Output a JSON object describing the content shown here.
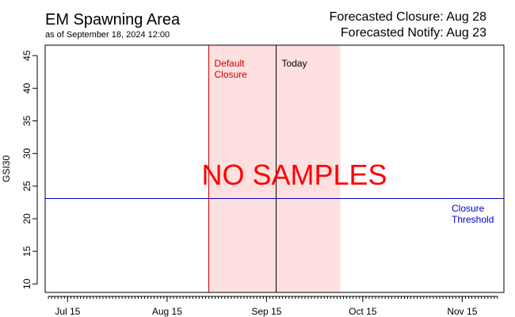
{
  "header": {
    "title": "EM Spawning Area",
    "subtitle": "as of September 18, 2024 12:00",
    "forecast_closure": "Forecasted Closure: Aug 28",
    "forecast_notify": "Forecasted Notify: Aug 23"
  },
  "chart_data": {
    "type": "line",
    "title": "EM Spawning Area",
    "ylabel": "GSI30",
    "xlabel": "",
    "xlim": [
      "2024-07-08",
      "2024-11-28"
    ],
    "ylim": [
      8.7,
      46.6
    ],
    "yticks": [
      10,
      15,
      20,
      25,
      30,
      35,
      40,
      45
    ],
    "xticks": [
      {
        "label": "Jul 15",
        "date": "2024-07-15"
      },
      {
        "label": "Aug 15",
        "date": "2024-08-15"
      },
      {
        "label": "Sep 15",
        "date": "2024-09-15"
      },
      {
        "label": "Oct 15",
        "date": "2024-10-15"
      },
      {
        "label": "Nov 15",
        "date": "2024-11-15"
      }
    ],
    "series": [],
    "shaded_region": {
      "start": "2024-08-28",
      "end": "2024-10-08",
      "color": "#ffe0e0"
    },
    "vlines": [
      {
        "date": "2024-08-28",
        "label": "Default Closure",
        "color": "#cc0000"
      },
      {
        "date": "2024-09-18",
        "label": "Today",
        "color": "#000000"
      }
    ],
    "hline": {
      "value": 23.1,
      "label": "Closure Threshold",
      "color": "#0000cc"
    },
    "annotation": {
      "text": "NO SAMPLES",
      "color": "#ff0000"
    },
    "grid": false
  }
}
